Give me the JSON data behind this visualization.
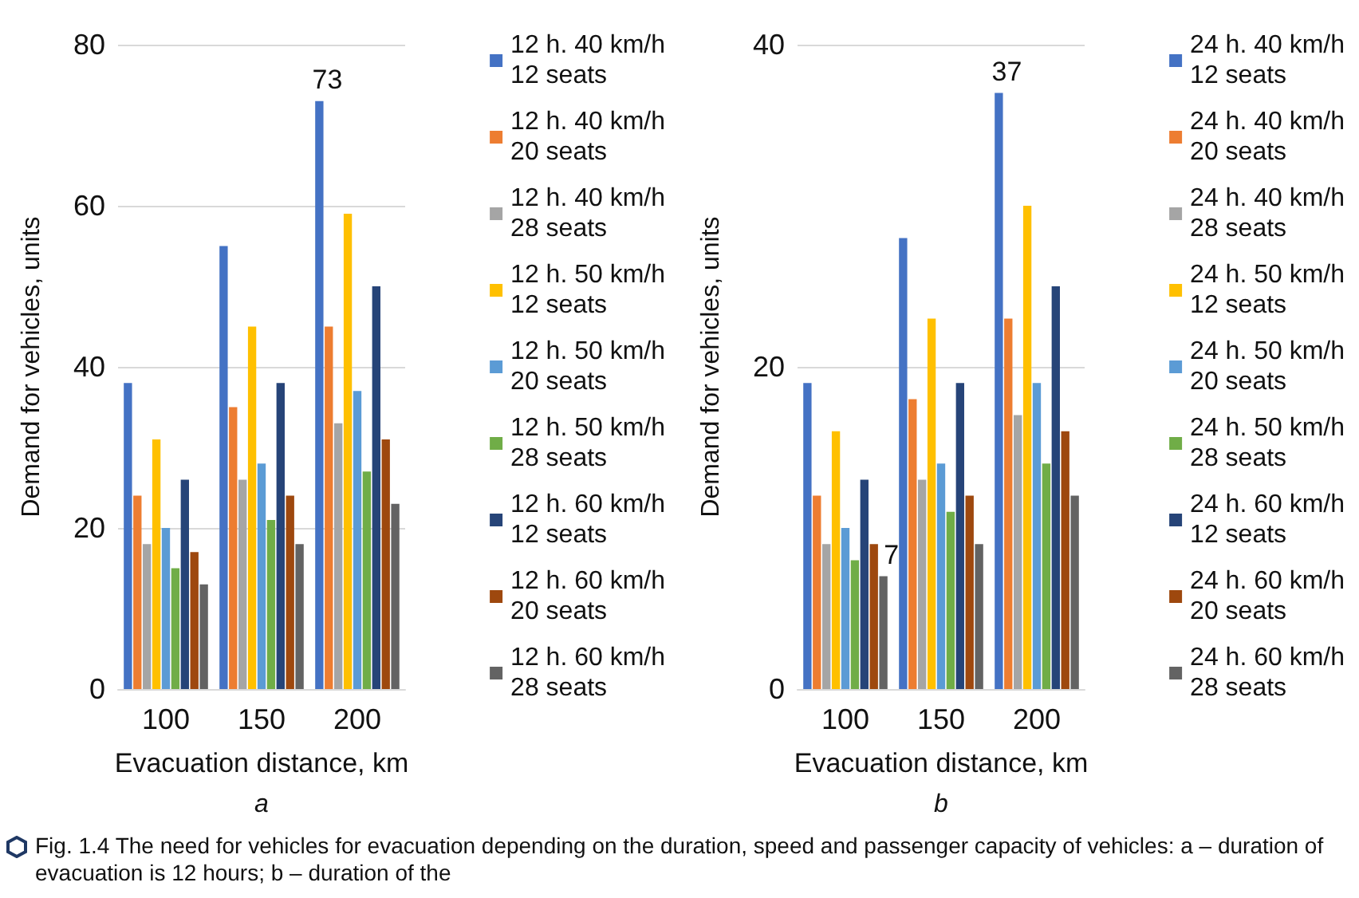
{
  "chart_data": [
    {
      "type": "bar",
      "categories": [
        "100",
        "150",
        "200"
      ],
      "xlabel": "Evacuation distance, km",
      "ylabel": "Demand for vehicles, units",
      "ylim": [
        0,
        80
      ],
      "yticks": [
        0,
        20,
        40,
        60,
        80
      ],
      "grid": "y",
      "legend": "right",
      "annotations": [
        "a",
        "Fig. 1.4 The need for vehicles for evacuation depending on the duration, speed and passenger capacity of vehicles: a – duration of evacuation is 12 hours; b – duration of the"
      ],
      "series": [
        {
          "name": "12 h. 40 km/h\n12 seats",
          "color": "#4472c4",
          "values": [
            38,
            55,
            73
          ],
          "value_labels": [
            null,
            null,
            "73"
          ]
        },
        {
          "name": "12 h. 40 km/h\n20 seats",
          "color": "#ed7d31",
          "values": [
            24,
            35,
            45
          ]
        },
        {
          "name": "12 h. 40 km/h\n28 seats",
          "color": "#a5a5a5",
          "values": [
            18,
            26,
            33
          ]
        },
        {
          "name": "12 h. 50 km/h\n12 seats",
          "color": "#ffc000",
          "values": [
            31,
            45,
            59
          ]
        },
        {
          "name": "12 h. 50 km/h\n20 seats",
          "color": "#5b9bd5",
          "values": [
            20,
            28,
            37
          ]
        },
        {
          "name": "12 h. 50 km/h\n28 seats",
          "color": "#70ad47",
          "values": [
            15,
            21,
            27
          ]
        },
        {
          "name": "12 h. 60 km/h\n12 seats",
          "color": "#264478",
          "values": [
            26,
            38,
            50
          ]
        },
        {
          "name": "12 h. 60 km/h\n20 seats",
          "color": "#9e480e",
          "values": [
            17,
            24,
            31
          ]
        },
        {
          "name": "12 h. 60 km/h\n28 seats",
          "color": "#636363",
          "values": [
            13,
            18,
            23
          ]
        }
      ]
    },
    {
      "type": "bar",
      "categories": [
        "100",
        "150",
        "200"
      ],
      "xlabel": "Evacuation distance, km",
      "ylabel": "Demand for vehicles, units",
      "ylim": [
        0,
        40
      ],
      "yticks": [
        0,
        20,
        40
      ],
      "grid": "y",
      "legend": "right",
      "annotations": [
        "b"
      ],
      "series": [
        {
          "name": "24 h. 40 km/h\n12 seats",
          "color": "#4472c4",
          "values": [
            19,
            28,
            37
          ],
          "value_labels": [
            null,
            null,
            "37"
          ]
        },
        {
          "name": "24 h. 40 km/h\n20 seats",
          "color": "#ed7d31",
          "values": [
            12,
            18,
            23
          ]
        },
        {
          "name": "24 h. 40 km/h\n28 seats",
          "color": "#a5a5a5",
          "values": [
            9,
            13,
            17
          ]
        },
        {
          "name": "24 h. 50 km/h\n12 seats",
          "color": "#ffc000",
          "values": [
            16,
            23,
            30
          ]
        },
        {
          "name": "24 h. 50 km/h\n20 seats",
          "color": "#5b9bd5",
          "values": [
            10,
            14,
            19
          ]
        },
        {
          "name": "24 h. 50 km/h\n28 seats",
          "color": "#70ad47",
          "values": [
            8,
            11,
            14
          ]
        },
        {
          "name": "24 h. 60 km/h\n12 seats",
          "color": "#264478",
          "values": [
            13,
            19,
            25
          ]
        },
        {
          "name": "24 h. 60 km/h\n20 seats",
          "color": "#9e480e",
          "values": [
            9,
            12,
            16
          ]
        },
        {
          "name": "24 h. 60 km/h\n28 seats",
          "color": "#636363",
          "values": [
            7,
            9,
            12
          ],
          "value_labels": [
            "7",
            null,
            null
          ]
        }
      ]
    }
  ]
}
